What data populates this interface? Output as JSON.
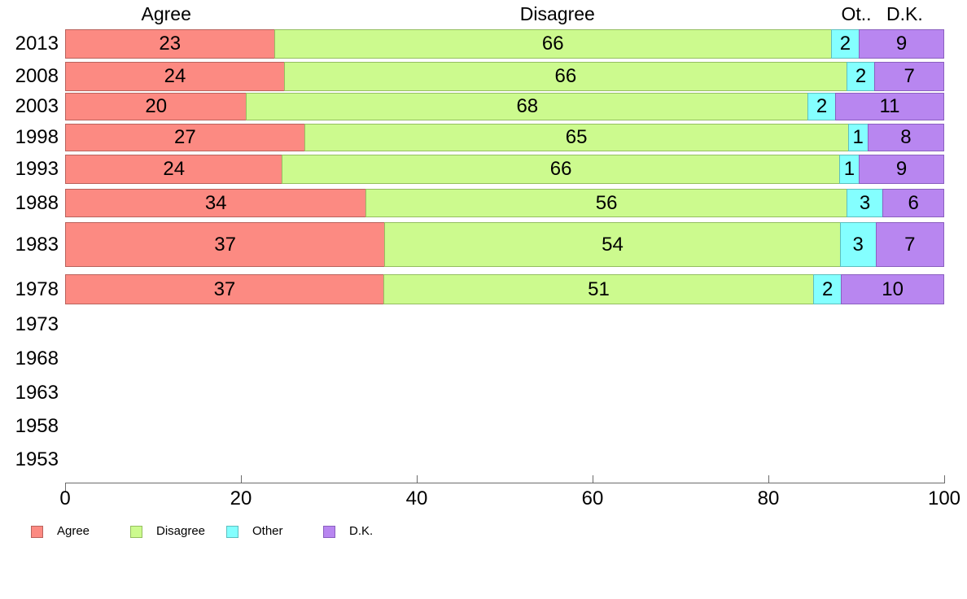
{
  "chart_data": {
    "type": "bar",
    "orientation": "horizontal",
    "stacked": true,
    "title": "",
    "xlabel": "",
    "ylabel": "",
    "xlim": [
      0,
      100
    ],
    "x_ticks": [
      0,
      20,
      40,
      60,
      80,
      100
    ],
    "grid": false,
    "legend_position": "bottom-left",
    "categories": [
      "2013",
      "2008",
      "2003",
      "1998",
      "1993",
      "1988",
      "1983",
      "1978",
      "1973",
      "1968",
      "1963",
      "1958",
      "1953"
    ],
    "series": [
      {
        "name": "Agree",
        "color": "#FC8A82",
        "border_color": "#B9625C",
        "values": [
          23,
          24,
          20,
          27,
          24,
          34,
          37,
          37,
          null,
          null,
          null,
          null,
          null
        ]
      },
      {
        "name": "Disagree",
        "color": "#CCFA8E",
        "border_color": "#94BE60",
        "values": [
          66,
          66,
          68,
          65,
          66,
          56,
          54,
          51,
          null,
          null,
          null,
          null,
          null
        ]
      },
      {
        "name": "Other",
        "color": "#84FFFF",
        "border_color": "#5CBFBF",
        "values": [
          2,
          2,
          2,
          1,
          1,
          3,
          3,
          2,
          null,
          null,
          null,
          null,
          null
        ]
      },
      {
        "name": "D.K.",
        "color": "#B886F0",
        "border_color": "#8A5FBF",
        "values": [
          9,
          7,
          11,
          8,
          9,
          6,
          7,
          10,
          null,
          null,
          null,
          null,
          null
        ]
      }
    ],
    "column_headers": [
      "Agree",
      "Disagree",
      "Ot..",
      "D.K."
    ],
    "legend_items": [
      "Agree",
      "Disagree",
      "Other",
      "D.K."
    ]
  }
}
